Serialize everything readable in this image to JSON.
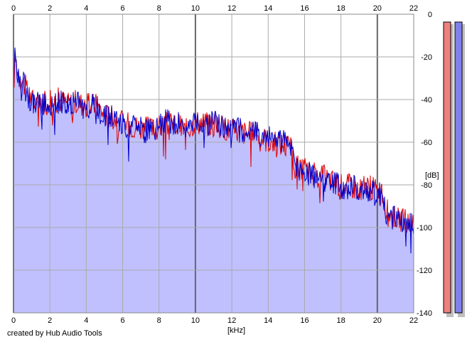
{
  "credit": "created by Hub Audio Tools",
  "colors": {
    "left_channel": "#e00000",
    "right_channel": "#0000cc",
    "fill": "#c0c0ff",
    "meter_left": "#f08080",
    "meter_right": "#8080f0",
    "grid": "#aaaaaa",
    "grid_major": "#666666"
  },
  "chart_data": {
    "type": "area",
    "title": "",
    "xlabel": "[kHz]",
    "ylabel": "[dB]",
    "xlim": [
      0,
      22
    ],
    "ylim": [
      -140,
      0
    ],
    "x_ticks": [
      "0",
      "2",
      "4",
      "6",
      "8",
      "10",
      "12",
      "14",
      "16",
      "18",
      "20",
      "22"
    ],
    "x_major_ticks": [
      "0",
      "10",
      "20"
    ],
    "y_ticks": [
      "0",
      "-20",
      "-40",
      "-60",
      "-80",
      "-100",
      "-120",
      "-140"
    ],
    "grid": true,
    "meters": {
      "left_level_db": -4,
      "right_level_db": -4
    },
    "series": [
      {
        "channel": "left",
        "x": [
          0,
          0.1,
          0.2,
          0.4,
          0.6,
          0.8,
          1,
          1.5,
          2,
          2.5,
          3,
          3.5,
          4,
          4.5,
          5,
          5.5,
          6,
          6.5,
          7,
          7.5,
          8,
          8.5,
          9,
          9.5,
          10,
          10.5,
          11,
          11.5,
          12,
          12.5,
          13,
          13.5,
          14,
          14.5,
          15,
          15.3,
          15.5,
          16,
          16.5,
          17,
          17.5,
          18,
          18.5,
          19,
          19.5,
          20,
          20.3,
          20.5,
          21,
          21.5,
          22
        ],
        "y": [
          -35,
          -20,
          -25,
          -30,
          -33,
          -37,
          -40,
          -42,
          -41,
          -40,
          -42,
          -41,
          -43,
          -42,
          -47,
          -48,
          -51,
          -52,
          -53,
          -54,
          -53,
          -51,
          -52,
          -54,
          -50,
          -51,
          -52,
          -53,
          -54,
          -55,
          -56,
          -57,
          -59,
          -60,
          -61,
          -64,
          -72,
          -73,
          -75,
          -76,
          -78,
          -80,
          -80,
          -82,
          -81,
          -82,
          -86,
          -92,
          -95,
          -97,
          -100
        ]
      },
      {
        "channel": "right",
        "x": [
          0,
          0.1,
          0.2,
          0.4,
          0.6,
          0.8,
          1,
          1.5,
          2,
          2.5,
          3,
          3.5,
          4,
          4.5,
          5,
          5.5,
          6,
          6.5,
          7,
          7.5,
          8,
          8.5,
          9,
          9.5,
          10,
          10.5,
          11,
          11.5,
          12,
          12.5,
          13,
          13.5,
          14,
          14.5,
          15,
          15.3,
          15.5,
          16,
          16.5,
          17,
          17.5,
          18,
          18.5,
          19,
          19.5,
          20,
          20.3,
          20.5,
          21,
          21.5,
          22
        ],
        "y": [
          -33,
          -18,
          -26,
          -31,
          -34,
          -38,
          -41,
          -43,
          -42,
          -41,
          -43,
          -42,
          -44,
          -43,
          -48,
          -49,
          -52,
          -53,
          -54,
          -55,
          -52,
          -50,
          -51,
          -53,
          -51,
          -52,
          -51,
          -52,
          -53,
          -54,
          -55,
          -56,
          -58,
          -59,
          -60,
          -63,
          -71,
          -74,
          -76,
          -77,
          -79,
          -81,
          -81,
          -82,
          -82,
          -83,
          -87,
          -93,
          -96,
          -98,
          -99
        ]
      }
    ]
  }
}
